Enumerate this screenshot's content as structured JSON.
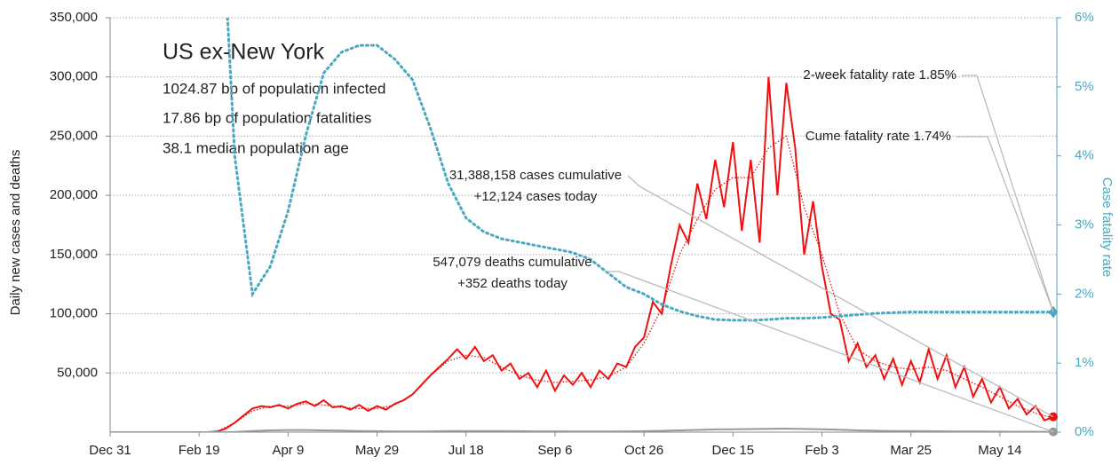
{
  "chart_data": {
    "type": "line",
    "title": "US ex-New York",
    "subtitle": [
      "1024.87 bp of population infected",
      "17.86 bp of population fatalities",
      "38.1 median population age"
    ],
    "ylabel": "Daily new cases and deaths",
    "y2label": "Case fatality rate",
    "annotations": [
      [
        "2-week fatality rate 1.85%"
      ],
      [
        "Cume fatality rate 1.74%"
      ],
      [
        "31,388,158 cases cumulative",
        "+12,124 cases today"
      ],
      [
        "547,079 deaths cumulative",
        "+352 deaths today"
      ]
    ],
    "xlim": [
      0,
      532
    ],
    "xticks": [
      {
        "value": 0,
        "label": "Dec 31"
      },
      {
        "value": 50,
        "label": "Feb 19"
      },
      {
        "value": 100,
        "label": "Apr 9"
      },
      {
        "value": 150,
        "label": "May 29"
      },
      {
        "value": 200,
        "label": "Jul 18"
      },
      {
        "value": 250,
        "label": "Sep 6"
      },
      {
        "value": 300,
        "label": "Oct 26"
      },
      {
        "value": 350,
        "label": "Dec 15"
      },
      {
        "value": 400,
        "label": "Feb 3"
      },
      {
        "value": 450,
        "label": "Mar 25"
      },
      {
        "value": 500,
        "label": "May 14"
      }
    ],
    "ylim": [
      0,
      350000
    ],
    "yticks": [
      {
        "value": 50000,
        "label": "50,000"
      },
      {
        "value": 100000,
        "label": "100,000"
      },
      {
        "value": 150000,
        "label": "150,000"
      },
      {
        "value": 200000,
        "label": "200,000"
      },
      {
        "value": 250000,
        "label": "250,000"
      },
      {
        "value": 300000,
        "label": "300,000"
      },
      {
        "value": 350000,
        "label": "350,000"
      }
    ],
    "y2lim": [
      0,
      6
    ],
    "y2ticks": [
      {
        "value": 0,
        "label": "0%"
      },
      {
        "value": 1,
        "label": "1%"
      },
      {
        "value": 2,
        "label": "2%"
      },
      {
        "value": 3,
        "label": "3%"
      },
      {
        "value": 4,
        "label": "4%"
      },
      {
        "value": 5,
        "label": "5%"
      },
      {
        "value": 6,
        "label": "6%"
      }
    ],
    "grid": true,
    "series": [
      {
        "color": "#ee1111",
        "style": "solid",
        "width": 2,
        "marker": "circle",
        "x": [
          0,
          5,
          10,
          15,
          20,
          25,
          30,
          35,
          40,
          45,
          50,
          55,
          60,
          65,
          70,
          75,
          80,
          85,
          90,
          95,
          100,
          105,
          110,
          115,
          120,
          125,
          130,
          135,
          140,
          145,
          150,
          155,
          160,
          165,
          170,
          175,
          180,
          185,
          190,
          195,
          200,
          205,
          210,
          215,
          220,
          225,
          230,
          235,
          240,
          245,
          250,
          255,
          260,
          265,
          270,
          275,
          280,
          285,
          290,
          295,
          300,
          305,
          310,
          315,
          320,
          325,
          330,
          335,
          340,
          345,
          350,
          355,
          360,
          365,
          370,
          375,
          380,
          385,
          390,
          395,
          400,
          405,
          410,
          415,
          420,
          425,
          430,
          435,
          440,
          445,
          450,
          455,
          460,
          465,
          470,
          475,
          480,
          485,
          490,
          495,
          500,
          505,
          510,
          515,
          520,
          525,
          530
        ],
        "values": [
          0,
          0,
          0,
          0,
          0,
          0,
          0,
          0,
          0,
          0,
          0,
          0,
          500,
          3000,
          8000,
          14000,
          20000,
          22000,
          21000,
          23000,
          20000,
          24000,
          26000,
          22000,
          27000,
          21000,
          22000,
          19000,
          23000,
          18000,
          22000,
          19000,
          24000,
          27000,
          32000,
          40000,
          48000,
          55000,
          62000,
          70000,
          62000,
          72000,
          60000,
          65000,
          52000,
          58000,
          45000,
          50000,
          38000,
          52000,
          35000,
          48000,
          40000,
          50000,
          38000,
          52000,
          45000,
          58000,
          55000,
          72000,
          80000,
          110000,
          100000,
          140000,
          175000,
          160000,
          210000,
          180000,
          230000,
          190000,
          245000,
          170000,
          230000,
          160000,
          300000,
          200000,
          295000,
          240000,
          150000,
          195000,
          140000,
          100000,
          95000,
          60000,
          75000,
          55000,
          65000,
          45000,
          62000,
          40000,
          60000,
          42000,
          70000,
          45000,
          65000,
          38000,
          55000,
          30000,
          45000,
          25000,
          38000,
          20000,
          28000,
          15000,
          22000,
          10000,
          13000
        ]
      },
      {
        "color": "#ee1111",
        "style": "dotted",
        "width": 1.3,
        "x": [
          0,
          10,
          20,
          30,
          40,
          50,
          60,
          70,
          80,
          90,
          100,
          110,
          120,
          130,
          140,
          150,
          160,
          170,
          180,
          190,
          200,
          210,
          220,
          230,
          240,
          250,
          260,
          270,
          280,
          290,
          300,
          310,
          320,
          330,
          340,
          350,
          360,
          370,
          380,
          390,
          400,
          410,
          420,
          430,
          440,
          450,
          460,
          470,
          480,
          490,
          500,
          510,
          520,
          530
        ],
        "values": [
          0,
          0,
          0,
          0,
          0,
          0,
          500,
          8000,
          18000,
          22000,
          22000,
          24000,
          23000,
          21000,
          20000,
          20000,
          23000,
          32000,
          48000,
          60000,
          65000,
          63000,
          55000,
          48000,
          44000,
          42000,
          43000,
          44000,
          47000,
          55000,
          75000,
          105000,
          150000,
          180000,
          205000,
          215000,
          215000,
          240000,
          250000,
          190000,
          150000,
          100000,
          70000,
          60000,
          55000,
          53000,
          55000,
          52000,
          45000,
          38000,
          30000,
          22000,
          16000,
          12000
        ]
      },
      {
        "color": "#999999",
        "style": "solid",
        "width": 2,
        "marker": "circle",
        "x": [
          0,
          10,
          20,
          30,
          40,
          50,
          60,
          70,
          80,
          90,
          100,
          110,
          120,
          130,
          140,
          150,
          160,
          170,
          180,
          190,
          200,
          210,
          220,
          230,
          240,
          250,
          260,
          270,
          280,
          290,
          300,
          310,
          320,
          330,
          340,
          350,
          360,
          370,
          380,
          390,
          400,
          410,
          420,
          430,
          440,
          450,
          460,
          470,
          480,
          490,
          500,
          510,
          520,
          530
        ],
        "values": [
          0,
          0,
          0,
          0,
          0,
          0,
          0,
          200,
          1000,
          1500,
          1800,
          1800,
          1500,
          1300,
          1000,
          800,
          600,
          500,
          700,
          900,
          1000,
          1000,
          900,
          800,
          700,
          700,
          600,
          600,
          600,
          700,
          800,
          1100,
          1500,
          1900,
          2300,
          2500,
          2600,
          2800,
          3000,
          2700,
          2400,
          2000,
          1500,
          1200,
          1000,
          900,
          800,
          700,
          600,
          500,
          450,
          400,
          350,
          300
        ]
      },
      {
        "color": "#4aa8c0",
        "style": "dotted",
        "width": 3,
        "axis": "y2",
        "marker": "diamond",
        "x": [
          0,
          10,
          20,
          30,
          40,
          50,
          60,
          70,
          80,
          90,
          100,
          110,
          120,
          130,
          140,
          150,
          160,
          170,
          180,
          190,
          200,
          210,
          220,
          230,
          240,
          250,
          260,
          270,
          280,
          290,
          300,
          310,
          320,
          330,
          340,
          350,
          360,
          370,
          380,
          390,
          400,
          410,
          420,
          430,
          440,
          450,
          460,
          470,
          480,
          490,
          500,
          510,
          520,
          530
        ],
        "values": [
          null,
          null,
          null,
          null,
          null,
          null,
          9,
          4,
          2,
          2.4,
          3.2,
          4.3,
          5.2,
          5.5,
          5.6,
          5.6,
          5.4,
          5.1,
          4.4,
          3.6,
          3.1,
          2.9,
          2.8,
          2.75,
          2.7,
          2.65,
          2.6,
          2.5,
          2.3,
          2.1,
          2,
          1.85,
          1.75,
          1.68,
          1.63,
          1.62,
          1.62,
          1.63,
          1.65,
          1.65,
          1.66,
          1.68,
          1.7,
          1.72,
          1.73,
          1.74,
          1.74,
          1.74,
          1.74,
          1.74,
          1.74,
          1.74,
          1.74,
          1.74
        ]
      }
    ]
  }
}
